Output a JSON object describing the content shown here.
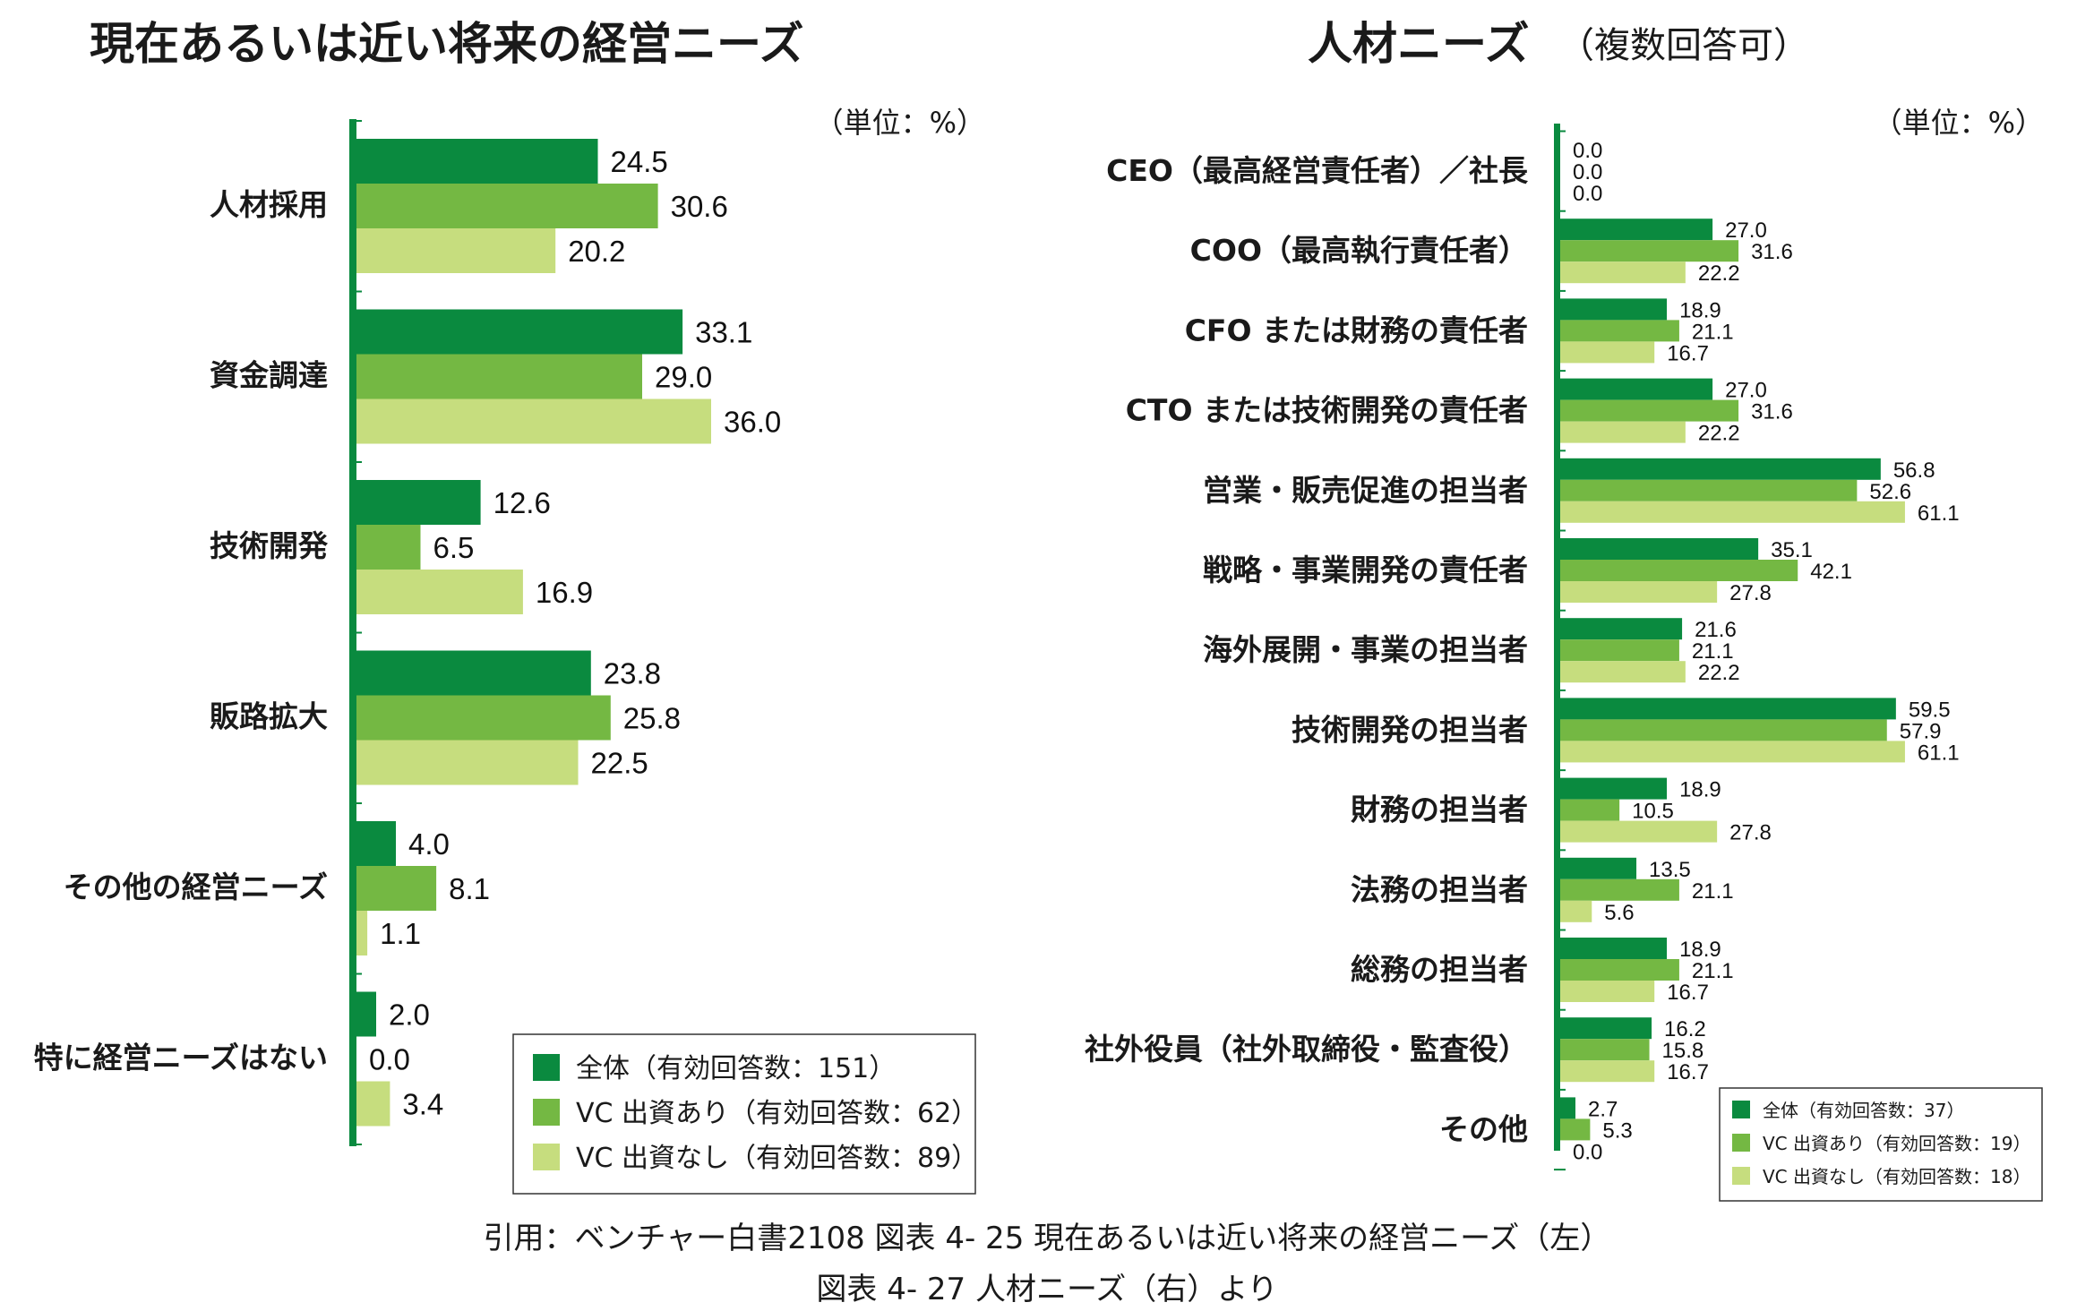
{
  "colors": {
    "all": "#0a8a3f",
    "vc_yes": "#74b843",
    "vc_no": "#c6dd7e",
    "axis": "#0a8a3f"
  },
  "chart_data": [
    {
      "type": "bar",
      "orientation": "horizontal",
      "title": "現在あるいは近い将来の経営ニーズ",
      "unit_label": "（単位：%）",
      "categories": [
        "人材採用",
        "資金調達",
        "技術開発",
        "販路拡大",
        "その他の経営ニーズ",
        "特に経営ニーズはない"
      ],
      "series": [
        {
          "name": "全体（有効回答数：151）",
          "values": [
            24.5,
            33.1,
            12.6,
            23.8,
            4.0,
            2.0
          ]
        },
        {
          "name": "VC 出資あり（有効回答数：62）",
          "values": [
            30.6,
            29.0,
            6.5,
            25.8,
            8.1,
            0.0
          ]
        },
        {
          "name": "VC 出資なし（有効回答数：89）",
          "values": [
            20.2,
            36.0,
            16.9,
            22.5,
            1.1,
            3.4
          ]
        }
      ],
      "legend_position": "bottom-right",
      "grid": false
    },
    {
      "type": "bar",
      "orientation": "horizontal",
      "title": "人材ニーズ",
      "title_note": "（複数回答可）",
      "unit_label": "（単位：%）",
      "categories": [
        "CEO（最高経営責任者）／社長",
        "COO（最高執行責任者）",
        "CFO または財務の責任者",
        "CTO または技術開発の責任者",
        "営業・販売促進の担当者",
        "戦略・事業開発の責任者",
        "海外展開・事業の担当者",
        "技術開発の担当者",
        "財務の担当者",
        "法務の担当者",
        "総務の担当者",
        "社外役員（社外取締役・監査役）",
        "その他"
      ],
      "series": [
        {
          "name": "全体（有効回答数：37）",
          "values": [
            0.0,
            27.0,
            18.9,
            27.0,
            56.8,
            35.1,
            21.6,
            59.5,
            18.9,
            13.5,
            18.9,
            16.2,
            2.7
          ]
        },
        {
          "name": "VC 出資あり（有効回答数：19）",
          "values": [
            0.0,
            31.6,
            21.1,
            31.6,
            52.6,
            42.1,
            21.1,
            57.9,
            10.5,
            21.1,
            21.1,
            15.8,
            5.3
          ]
        },
        {
          "name": "VC 出資なし（有効回答数：18）",
          "values": [
            0.0,
            22.2,
            16.7,
            22.2,
            61.1,
            27.8,
            22.2,
            61.1,
            27.8,
            5.6,
            16.7,
            16.7,
            0.0
          ]
        }
      ],
      "legend_position": "bottom-right",
      "grid": false
    }
  ],
  "source_lines": [
    "引用：ベンチャー白書2108 図表 4- 25 現在あるいは近い将来の経営ニーズ（左）",
    "図表 4- 27 人材ニーズ（右）より"
  ]
}
